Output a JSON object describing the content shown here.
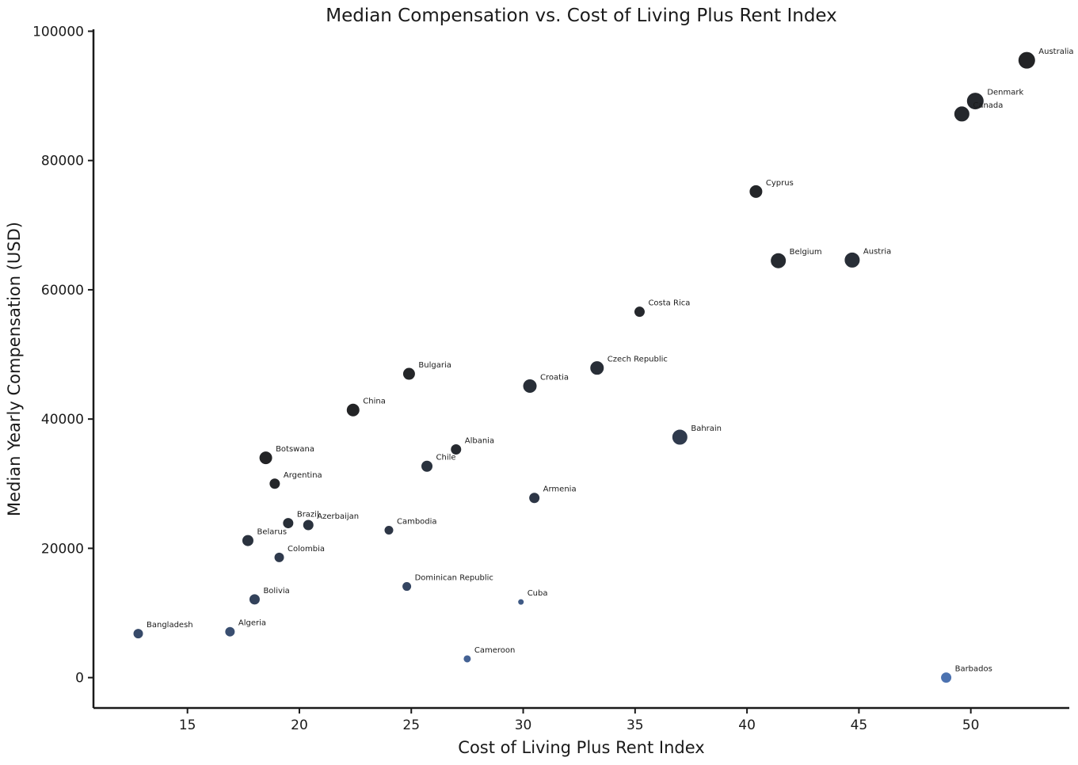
{
  "chart_data": {
    "type": "scatter",
    "title": "Median Compensation vs. Cost of Living Plus Rent Index",
    "xlabel": "Cost of Living Plus Rent Index",
    "ylabel": "Median Yearly Compensation (USD)",
    "xlim": [
      10.8,
      54.4
    ],
    "ylim": [
      -4700,
      100300
    ],
    "xticks": [
      15,
      20,
      25,
      30,
      35,
      40,
      45,
      50
    ],
    "yticks": [
      0,
      20000,
      40000,
      60000,
      80000,
      100000
    ],
    "xtick_labels": [
      "15",
      "20",
      "25",
      "30",
      "35",
      "40",
      "45",
      "50"
    ],
    "ytick_labels": [
      "0",
      "20000",
      "40000",
      "60000",
      "80000",
      "100000"
    ],
    "grid": false,
    "colors": {
      "dark": "#222222",
      "light": "#4c72b0"
    },
    "points": [
      {
        "label": "Australia",
        "x": 52.5,
        "y": 95500,
        "size": 11,
        "shade": 0.03
      },
      {
        "label": "Denmark",
        "x": 50.2,
        "y": 89200,
        "size": 11,
        "shade": 0.08
      },
      {
        "label": "Canada",
        "x": 49.6,
        "y": 87200,
        "size": 10,
        "shade": 0.08
      },
      {
        "label": "Cyprus",
        "x": 40.4,
        "y": 75200,
        "size": 8.5,
        "shade": 0.05
      },
      {
        "label": "Belgium",
        "x": 41.4,
        "y": 64500,
        "size": 10,
        "shade": 0.1
      },
      {
        "label": "Austria",
        "x": 44.7,
        "y": 64600,
        "size": 10,
        "shade": 0.15
      },
      {
        "label": "Costa Rica",
        "x": 35.2,
        "y": 56600,
        "size": 7,
        "shade": 0.08
      },
      {
        "label": "Bulgaria",
        "x": 24.9,
        "y": 47000,
        "size": 8,
        "shade": 0.05
      },
      {
        "label": "Czech Republic",
        "x": 33.3,
        "y": 47900,
        "size": 9,
        "shade": 0.15
      },
      {
        "label": "Croatia",
        "x": 30.3,
        "y": 45100,
        "size": 9,
        "shade": 0.15
      },
      {
        "label": "China",
        "x": 22.4,
        "y": 41400,
        "size": 8.5,
        "shade": 0.03
      },
      {
        "label": "Bahrain",
        "x": 37.0,
        "y": 37200,
        "size": 10,
        "shade": 0.3
      },
      {
        "label": "Albania",
        "x": 27.0,
        "y": 35300,
        "size": 7,
        "shade": 0.1
      },
      {
        "label": "Botswana",
        "x": 18.5,
        "y": 34000,
        "size": 8.5,
        "shade": 0.03
      },
      {
        "label": "Chile",
        "x": 25.7,
        "y": 32700,
        "size": 7.5,
        "shade": 0.2
      },
      {
        "label": "Argentina",
        "x": 18.9,
        "y": 30000,
        "size": 7,
        "shade": 0.05
      },
      {
        "label": "Armenia",
        "x": 30.5,
        "y": 27800,
        "size": 7,
        "shade": 0.25
      },
      {
        "label": "Brazil",
        "x": 19.5,
        "y": 23900,
        "size": 7,
        "shade": 0.15
      },
      {
        "label": "Azerbaijan",
        "x": 20.4,
        "y": 23600,
        "size": 7,
        "shade": 0.2
      },
      {
        "label": "Cambodia",
        "x": 24.0,
        "y": 22800,
        "size": 6,
        "shade": 0.25
      },
      {
        "label": "Belarus",
        "x": 17.7,
        "y": 21200,
        "size": 7.5,
        "shade": 0.2
      },
      {
        "label": "Colombia",
        "x": 19.1,
        "y": 18600,
        "size": 6.5,
        "shade": 0.3
      },
      {
        "label": "Dominican Republic",
        "x": 24.8,
        "y": 14100,
        "size": 6,
        "shade": 0.45
      },
      {
        "label": "Bolivia",
        "x": 18.0,
        "y": 12100,
        "size": 7,
        "shade": 0.4
      },
      {
        "label": "Cuba",
        "x": 29.9,
        "y": 11700,
        "size": 4,
        "shade": 0.7
      },
      {
        "label": "Bangladesh",
        "x": 12.8,
        "y": 6800,
        "size": 6.5,
        "shade": 0.5
      },
      {
        "label": "Algeria",
        "x": 16.9,
        "y": 7100,
        "size": 6.5,
        "shade": 0.55
      },
      {
        "label": "Cameroon",
        "x": 27.5,
        "y": 2900,
        "size": 5,
        "shade": 0.8
      },
      {
        "label": "Barbados",
        "x": 48.9,
        "y": 0,
        "size": 7,
        "shade": 1.0
      }
    ]
  }
}
